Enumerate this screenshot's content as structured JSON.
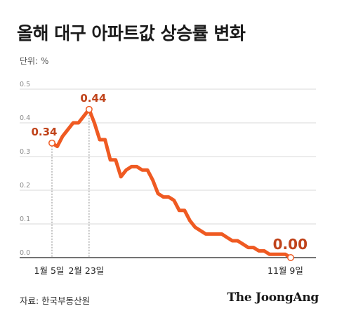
{
  "title": "올해 대구 아파트값 상승률 변화",
  "unit": "단위: %",
  "source": "자료: 한국부동산원",
  "logo": "The JoongAng",
  "colors": {
    "line": "#ef5a22",
    "annotation": "#c0431a",
    "grid": "#d8d8d8"
  },
  "chart_data": {
    "type": "line",
    "title": "올해 대구 아파트값 상승률 변화",
    "ylabel": "단위: %",
    "ylim": [
      0,
      0.5
    ],
    "yticks": [
      "0.0",
      "0.1",
      "0.2",
      "0.3",
      "0.4",
      "0.5"
    ],
    "xticks": [
      "1월 5일",
      "2월 23일",
      "11월 9일"
    ],
    "x_tick_indices": [
      0,
      7,
      44
    ],
    "grid": true,
    "values": [
      0.34,
      0.33,
      0.36,
      0.38,
      0.4,
      0.4,
      0.42,
      0.44,
      0.4,
      0.35,
      0.35,
      0.29,
      0.29,
      0.24,
      0.26,
      0.27,
      0.27,
      0.26,
      0.26,
      0.23,
      0.19,
      0.18,
      0.18,
      0.17,
      0.14,
      0.14,
      0.11,
      0.09,
      0.08,
      0.07,
      0.07,
      0.07,
      0.07,
      0.06,
      0.05,
      0.05,
      0.04,
      0.03,
      0.03,
      0.02,
      0.02,
      0.01,
      0.01,
      0.01,
      0.01,
      0.0
    ],
    "annotations": [
      {
        "index": 0,
        "label": "0.34"
      },
      {
        "index": 7,
        "label": "0.44"
      },
      {
        "index": 45,
        "label": "0.00"
      }
    ]
  }
}
